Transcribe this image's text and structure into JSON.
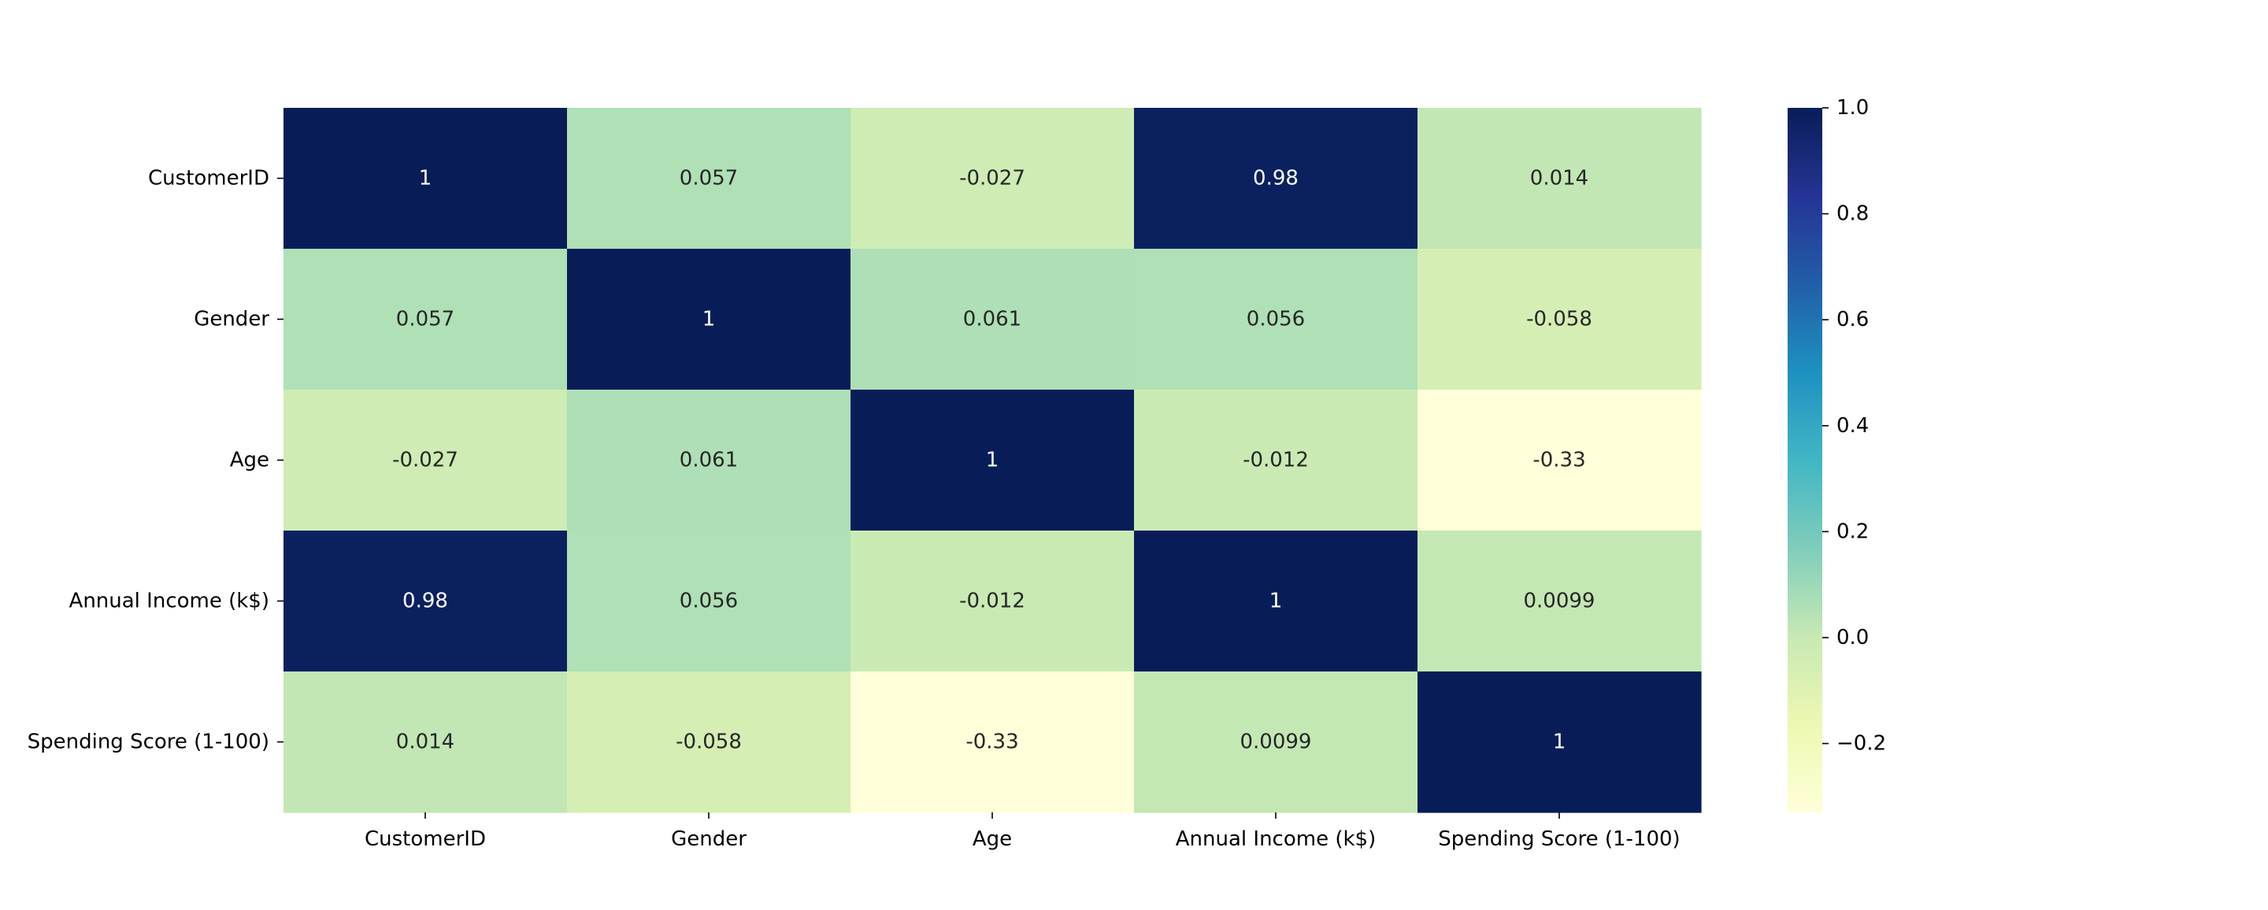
{
  "chart_data": {
    "type": "heatmap",
    "title": "",
    "xlabel": "",
    "ylabel": "",
    "x_labels": [
      "CustomerID",
      "Gender",
      "Age",
      "Annual Income (k$)",
      "Spending Score (1-100)"
    ],
    "y_labels": [
      "CustomerID",
      "Gender",
      "Age",
      "Annual Income (k$)",
      "Spending Score (1-100)"
    ],
    "values": [
      [
        1,
        0.057,
        -0.027,
        0.98,
        0.014
      ],
      [
        0.057,
        1,
        0.061,
        0.056,
        -0.058
      ],
      [
        -0.027,
        0.061,
        1,
        -0.012,
        -0.33
      ],
      [
        0.98,
        0.056,
        -0.012,
        1,
        0.0099
      ],
      [
        0.014,
        -0.058,
        -0.33,
        0.0099,
        1
      ]
    ],
    "annotations": [
      [
        "1",
        "0.057",
        "-0.027",
        "0.98",
        "0.014"
      ],
      [
        "0.057",
        "1",
        "0.061",
        "0.056",
        "-0.058"
      ],
      [
        "-0.027",
        "0.061",
        "1",
        "-0.012",
        "-0.33"
      ],
      [
        "0.98",
        "0.056",
        "-0.012",
        "1",
        "0.0099"
      ],
      [
        "0.014",
        "-0.058",
        "-0.33",
        "0.0099",
        "1"
      ]
    ],
    "colormap": "YlGnBu",
    "colormap_stops": [
      "#ffffd9",
      "#edf8b1",
      "#c7e9b4",
      "#7fcdbb",
      "#41b6c4",
      "#1d91c0",
      "#225ea8",
      "#253494",
      "#081d58"
    ],
    "vmin": -0.33,
    "vmax": 1.0,
    "colorbar": {
      "ticks": [
        1.0,
        0.8,
        0.6,
        0.4,
        0.2,
        0.0,
        -0.2
      ],
      "tick_labels": [
        "1.0",
        "0.8",
        "0.6",
        "0.4",
        "0.2",
        "0.0",
        "−0.2"
      ]
    },
    "grid": false,
    "legend": "colorbar-right"
  }
}
